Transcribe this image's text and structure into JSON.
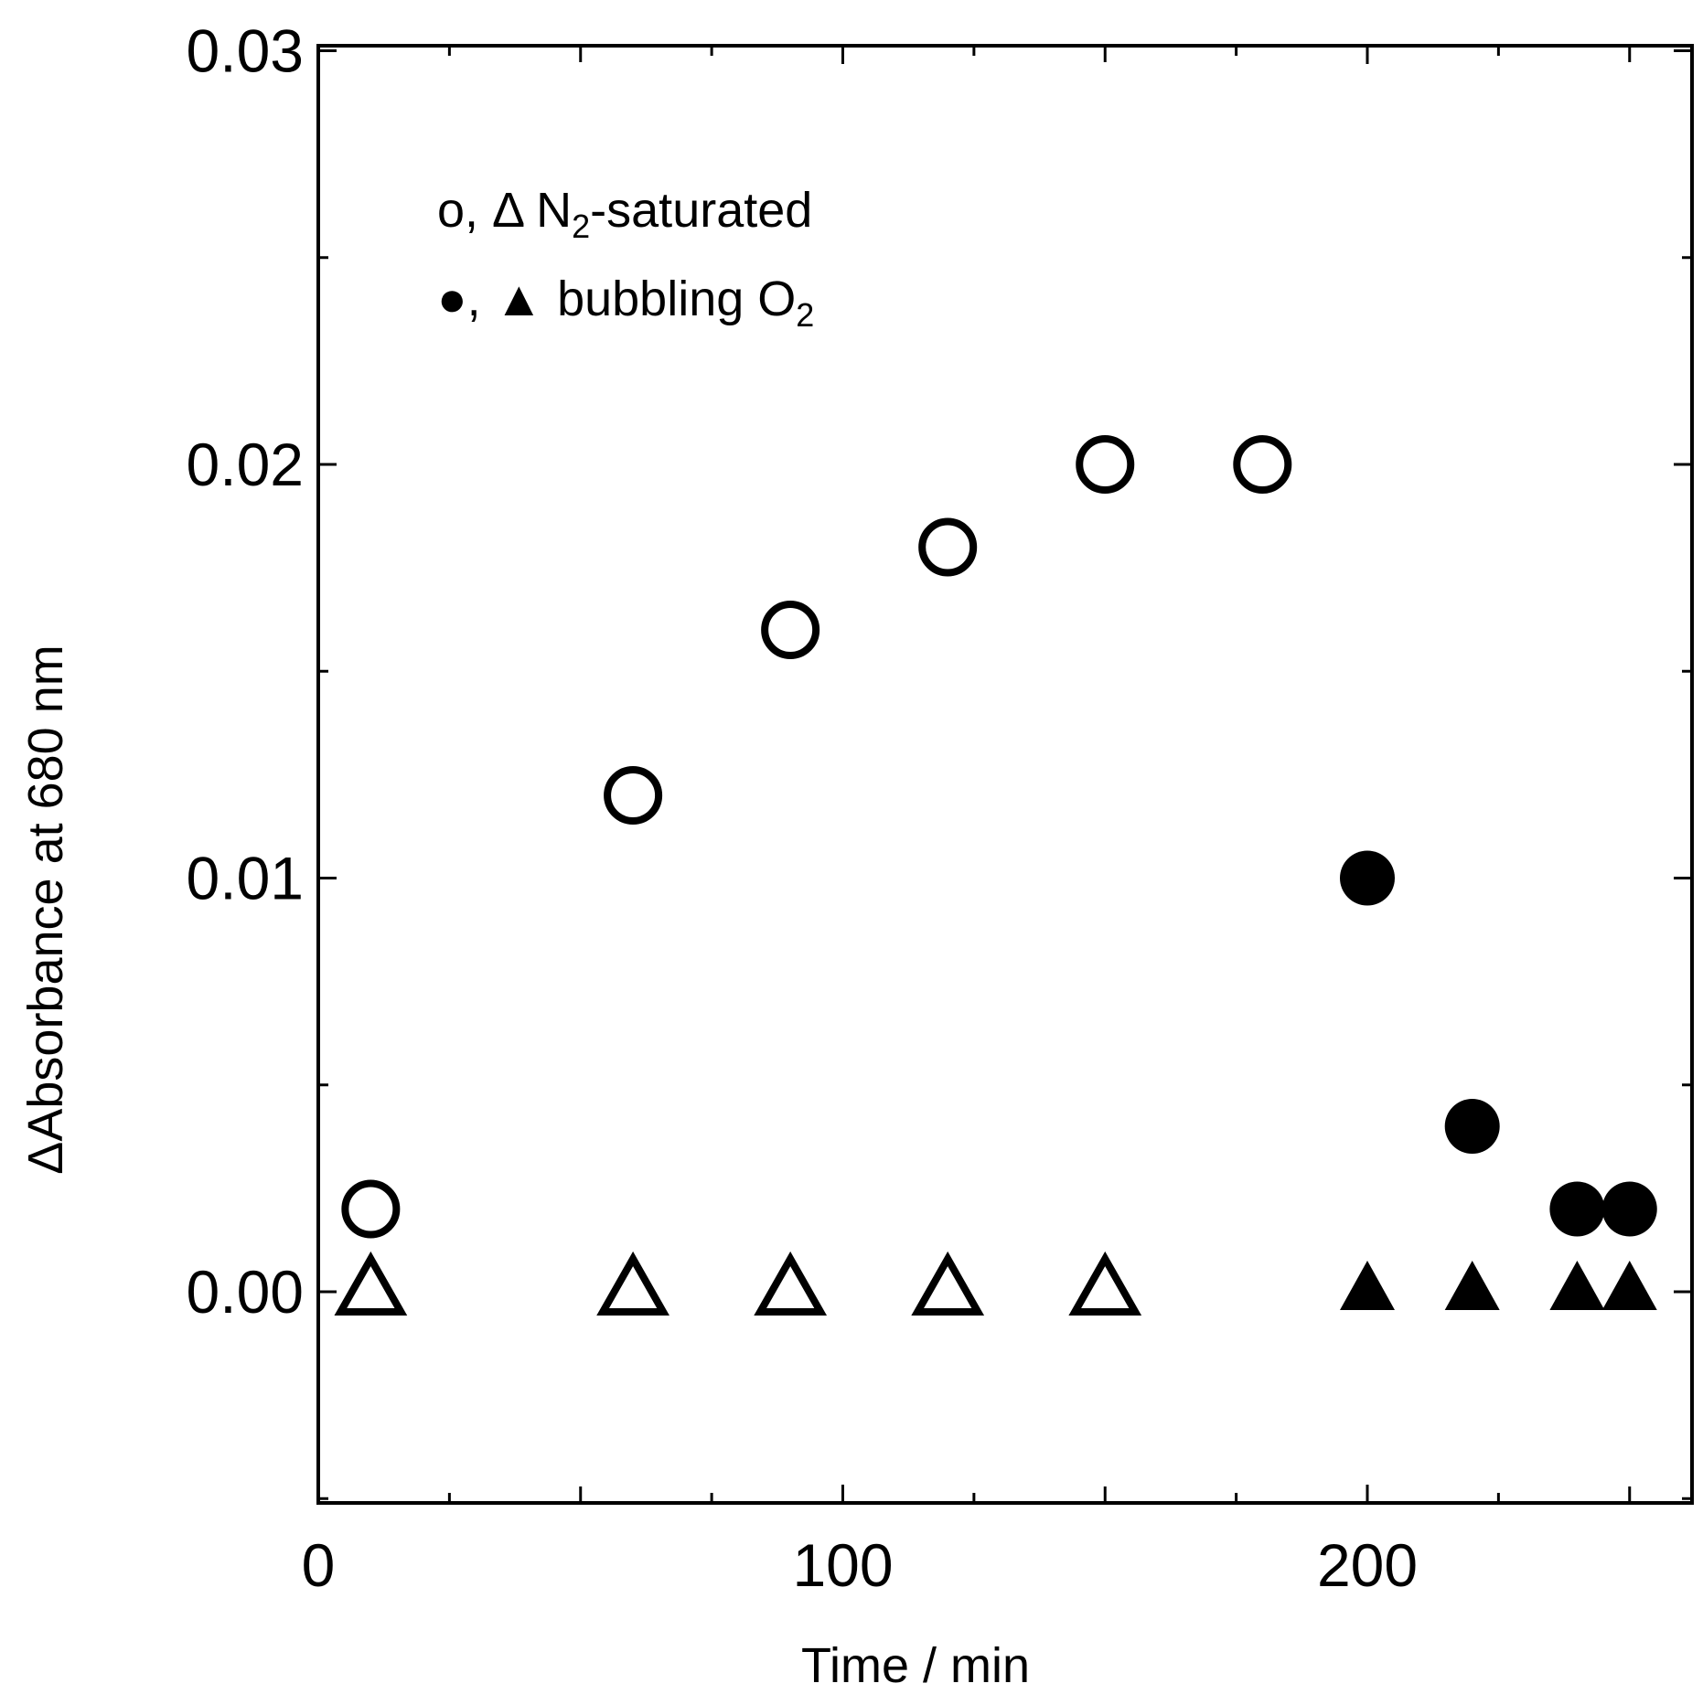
{
  "chart_data": {
    "type": "scatter",
    "title": "",
    "xlabel": "Time / min",
    "ylabel": "ΔAbsorbance at 680 nm",
    "xlim": [
      0,
      262
    ],
    "ylim": [
      -0.005,
      0.03
    ],
    "x_ticks": [
      {
        "value": 0,
        "label": "0"
      },
      {
        "value": 100,
        "label": "100"
      },
      {
        "value": 200,
        "label": "200"
      }
    ],
    "y_ticks": [
      {
        "value": 0.0,
        "label": "0.00"
      },
      {
        "value": 0.01,
        "label": "0.01"
      },
      {
        "value": 0.02,
        "label": "0.02"
      },
      {
        "value": 0.03,
        "label": "0.03"
      }
    ],
    "grid": false,
    "legend": {
      "placement": "top-left",
      "entries": [
        {
          "symbols": "o, Δ",
          "text": "N",
          "sub": "2",
          "suffix": "-saturated"
        },
        {
          "symbols": "●, ▲",
          "text": "bubbling O",
          "sub": "2",
          "suffix": ""
        }
      ]
    },
    "series": [
      {
        "marker": "open-circle",
        "points": [
          [
            10,
            0.002
          ],
          [
            60,
            0.012
          ],
          [
            90,
            0.016
          ],
          [
            120,
            0.018
          ],
          [
            150,
            0.02
          ],
          [
            180,
            0.02
          ]
        ]
      },
      {
        "marker": "open-triangle",
        "points": [
          [
            10,
            0.0
          ],
          [
            60,
            0.0
          ],
          [
            90,
            0.0
          ],
          [
            120,
            0.0
          ],
          [
            150,
            0.0
          ]
        ]
      },
      {
        "marker": "filled-circle",
        "points": [
          [
            200,
            0.01
          ],
          [
            220,
            0.004
          ],
          [
            240,
            0.002
          ],
          [
            250,
            0.002
          ]
        ]
      },
      {
        "marker": "filled-triangle",
        "points": [
          [
            200,
            0.0
          ],
          [
            220,
            0.0
          ],
          [
            240,
            0.0
          ],
          [
            250,
            0.0
          ]
        ]
      }
    ]
  }
}
